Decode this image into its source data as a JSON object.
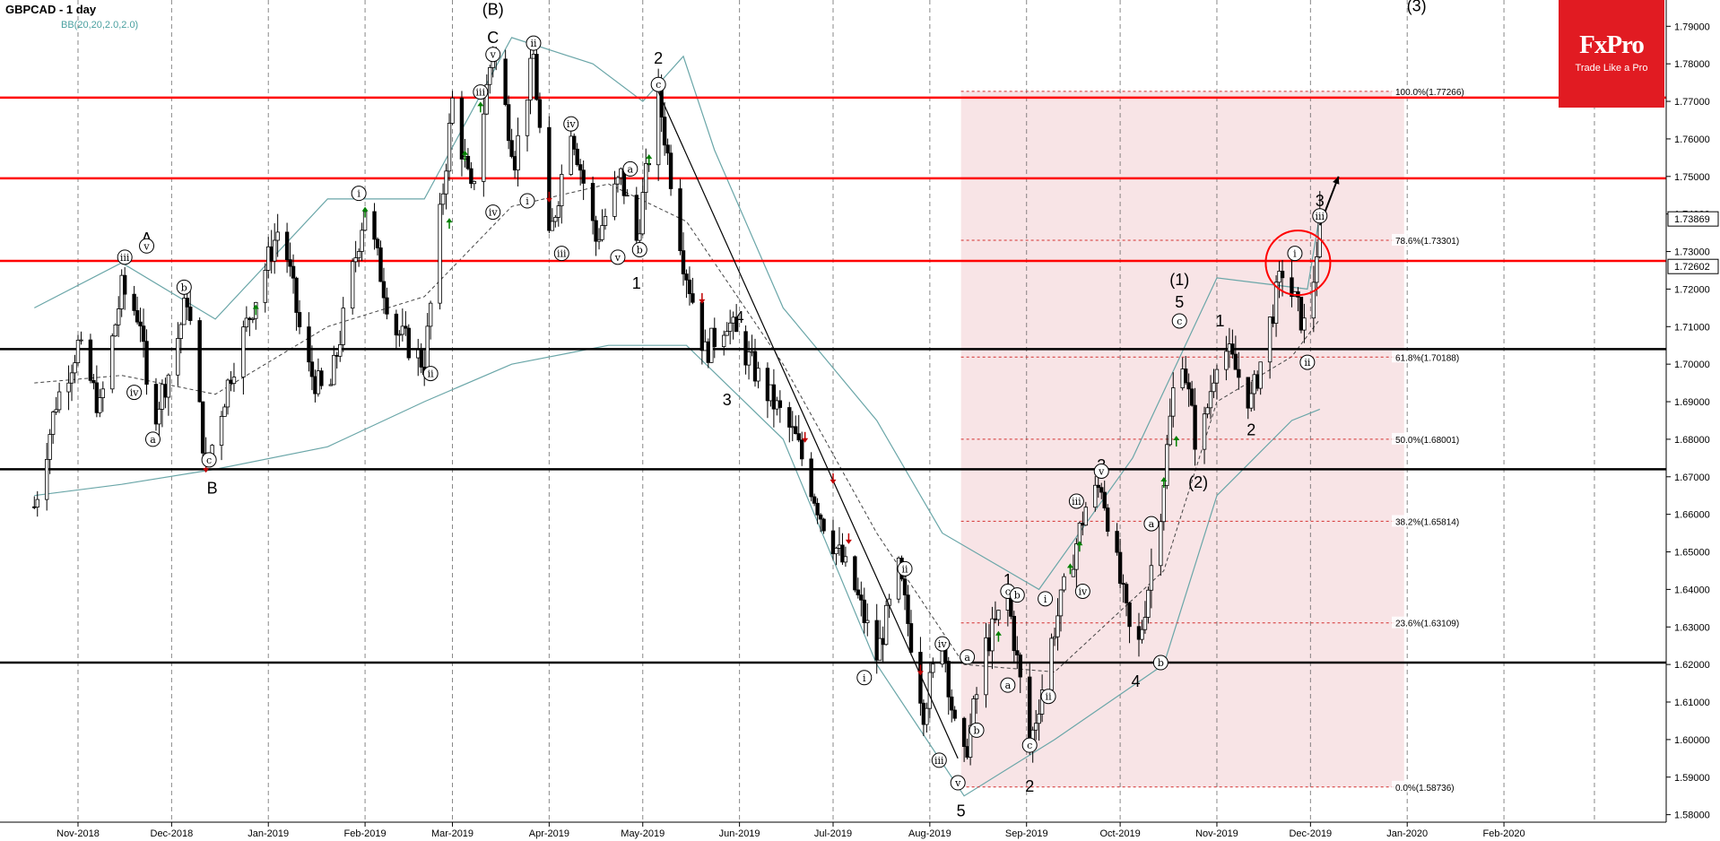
{
  "header": {
    "symbol": "GBPCAD - 1 day",
    "indicator": "BB(20,20,2.0,2.0)"
  },
  "brand": {
    "name": "FxPro",
    "tagline": "Trade Like a Pro",
    "color": "#e11b22"
  },
  "colors": {
    "resistance": "#ff0000",
    "support": "#000000",
    "zone_fill": "#f5d5d8",
    "band": "#6aa6a8",
    "up_arrow": "#008000",
    "down_arrow": "#c00000"
  },
  "chart_data": {
    "type": "candlestick",
    "title": "GBPCAD - 1 day",
    "ylim": [
      1.578,
      1.797
    ],
    "grid": "dashed vertical",
    "x_tick_labels": [
      "Nov-2018",
      "Dec-2018",
      "Jan-2019",
      "Feb-2019",
      "Mar-2019",
      "Apr-2019",
      "May-2019",
      "Jun-2019",
      "Jul-2019",
      "Aug-2019",
      "Sep-2019",
      "Oct-2019",
      "Nov-2019",
      "Dec-2019",
      "Jan-2020",
      "Feb-2020"
    ],
    "y_tick_labels": [
      "1.79000",
      "1.78000",
      "1.77000",
      "1.76000",
      "1.75000",
      "1.74000",
      "1.73000",
      "1.72000",
      "1.71000",
      "1.70000",
      "1.69000",
      "1.68000",
      "1.67000",
      "1.66000",
      "1.65000",
      "1.64000",
      "1.63000",
      "1.62000",
      "1.61000",
      "1.60000",
      "1.59000",
      "1.58000"
    ],
    "price_tags": [
      {
        "label": "1.73869",
        "value": 1.73869
      },
      {
        "label": "1.72602",
        "value": 1.72602
      }
    ],
    "resistance_levels": [
      1.771,
      1.7495,
      1.7275
    ],
    "support_levels": [
      1.704,
      1.672,
      1.6205
    ],
    "fibonacci": [
      {
        "label": "100.0%(1.77266)",
        "value": 1.77266
      },
      {
        "label": "78.6%(1.73301)",
        "value": 1.73301
      },
      {
        "label": "61.8%(1.70188)",
        "value": 1.70188
      },
      {
        "label": "50.0%(1.68001)",
        "value": 1.68001
      },
      {
        "label": "38.2%(1.65814)",
        "value": 1.65814
      },
      {
        "label": "23.6%(1.63109)",
        "value": 1.63109
      },
      {
        "label": "0.0%(1.58736)",
        "value": 1.58736
      }
    ],
    "price_path": [
      {
        "d": "2018-10-18",
        "v": 1.662
      },
      {
        "d": "2018-10-25",
        "v": 1.69
      },
      {
        "d": "2018-11-01",
        "v": 1.705
      },
      {
        "d": "2018-11-08",
        "v": 1.688
      },
      {
        "d": "2018-11-15",
        "v": 1.72
      },
      {
        "d": "2018-11-21",
        "v": 1.712
      },
      {
        "d": "2018-11-24",
        "v": 1.683
      },
      {
        "d": "2018-12-01",
        "v": 1.7
      },
      {
        "d": "2018-12-06",
        "v": 1.718
      },
      {
        "d": "2018-12-12",
        "v": 1.672
      },
      {
        "d": "2018-12-20",
        "v": 1.698
      },
      {
        "d": "2018-12-28",
        "v": 1.718
      },
      {
        "d": "2019-01-05",
        "v": 1.738
      },
      {
        "d": "2019-01-13",
        "v": 1.7
      },
      {
        "d": "2019-01-20",
        "v": 1.69
      },
      {
        "d": "2019-02-01",
        "v": 1.742
      },
      {
        "d": "2019-02-10",
        "v": 1.71
      },
      {
        "d": "2019-02-20",
        "v": 1.7
      },
      {
        "d": "2019-03-01",
        "v": 1.77
      },
      {
        "d": "2019-03-07",
        "v": 1.745
      },
      {
        "d": "2019-03-14",
        "v": 1.785
      },
      {
        "d": "2019-03-21",
        "v": 1.755
      },
      {
        "d": "2019-03-27",
        "v": 1.782
      },
      {
        "d": "2019-04-01",
        "v": 1.732
      },
      {
        "d": "2019-04-08",
        "v": 1.764
      },
      {
        "d": "2019-04-16",
        "v": 1.733
      },
      {
        "d": "2019-04-24",
        "v": 1.75
      },
      {
        "d": "2019-04-29",
        "v": 1.733
      },
      {
        "d": "2019-05-06",
        "v": 1.772
      },
      {
        "d": "2019-05-14",
        "v": 1.728
      },
      {
        "d": "2019-05-21",
        "v": 1.703
      },
      {
        "d": "2019-05-28",
        "v": 1.712
      },
      {
        "d": "2019-06-08",
        "v": 1.695
      },
      {
        "d": "2019-06-19",
        "v": 1.68
      },
      {
        "d": "2019-06-27",
        "v": 1.66
      },
      {
        "d": "2019-07-08",
        "v": 1.64
      },
      {
        "d": "2019-07-15",
        "v": 1.622
      },
      {
        "d": "2019-07-22",
        "v": 1.645
      },
      {
        "d": "2019-07-30",
        "v": 1.608
      },
      {
        "d": "2019-08-05",
        "v": 1.628
      },
      {
        "d": "2019-08-11",
        "v": 1.59
      },
      {
        "d": "2019-08-19",
        "v": 1.625
      },
      {
        "d": "2019-08-26",
        "v": 1.638
      },
      {
        "d": "2019-09-02",
        "v": 1.598
      },
      {
        "d": "2019-09-10",
        "v": 1.63
      },
      {
        "d": "2019-09-20",
        "v": 1.662
      },
      {
        "d": "2019-09-25",
        "v": 1.668
      },
      {
        "d": "2019-10-06",
        "v": 1.62
      },
      {
        "d": "2019-10-14",
        "v": 1.662
      },
      {
        "d": "2019-10-20",
        "v": 1.708
      },
      {
        "d": "2019-10-26",
        "v": 1.675
      },
      {
        "d": "2019-11-02",
        "v": 1.707
      },
      {
        "d": "2019-11-12",
        "v": 1.69
      },
      {
        "d": "2019-11-22",
        "v": 1.725
      },
      {
        "d": "2019-11-30",
        "v": 1.708
      },
      {
        "d": "2019-12-04",
        "v": 1.738
      }
    ],
    "upper_band": [
      {
        "d": "2018-10-18",
        "v": 1.715
      },
      {
        "d": "2018-11-15",
        "v": 1.727
      },
      {
        "d": "2018-12-15",
        "v": 1.712
      },
      {
        "d": "2019-01-20",
        "v": 1.744
      },
      {
        "d": "2019-02-20",
        "v": 1.744
      },
      {
        "d": "2019-03-20",
        "v": 1.787
      },
      {
        "d": "2019-04-15",
        "v": 1.78
      },
      {
        "d": "2019-05-01",
        "v": 1.77
      },
      {
        "d": "2019-05-14",
        "v": 1.782
      },
      {
        "d": "2019-05-24",
        "v": 1.757
      },
      {
        "d": "2019-06-15",
        "v": 1.715
      },
      {
        "d": "2019-07-15",
        "v": 1.685
      },
      {
        "d": "2019-08-05",
        "v": 1.655
      },
      {
        "d": "2019-09-05",
        "v": 1.64
      },
      {
        "d": "2019-10-05",
        "v": 1.675
      },
      {
        "d": "2019-11-01",
        "v": 1.723
      },
      {
        "d": "2019-11-30",
        "v": 1.72
      },
      {
        "d": "2019-12-04",
        "v": 1.74
      }
    ],
    "lower_band": [
      {
        "d": "2018-10-18",
        "v": 1.665
      },
      {
        "d": "2018-11-15",
        "v": 1.668
      },
      {
        "d": "2018-12-15",
        "v": 1.672
      },
      {
        "d": "2019-01-20",
        "v": 1.678
      },
      {
        "d": "2019-02-20",
        "v": 1.69
      },
      {
        "d": "2019-03-20",
        "v": 1.7
      },
      {
        "d": "2019-04-20",
        "v": 1.705
      },
      {
        "d": "2019-05-15",
        "v": 1.705
      },
      {
        "d": "2019-06-15",
        "v": 1.68
      },
      {
        "d": "2019-07-15",
        "v": 1.62
      },
      {
        "d": "2019-08-12",
        "v": 1.585
      },
      {
        "d": "2019-09-10",
        "v": 1.6
      },
      {
        "d": "2019-10-15",
        "v": 1.62
      },
      {
        "d": "2019-11-01",
        "v": 1.665
      },
      {
        "d": "2019-11-25",
        "v": 1.685
      },
      {
        "d": "2019-12-04",
        "v": 1.688
      }
    ],
    "middle_band": [
      {
        "d": "2018-10-18",
        "v": 1.695
      },
      {
        "d": "2018-11-15",
        "v": 1.697
      },
      {
        "d": "2018-12-15",
        "v": 1.692
      },
      {
        "d": "2019-01-20",
        "v": 1.71
      },
      {
        "d": "2019-02-20",
        "v": 1.718
      },
      {
        "d": "2019-03-20",
        "v": 1.742
      },
      {
        "d": "2019-04-20",
        "v": 1.748
      },
      {
        "d": "2019-05-15",
        "v": 1.738
      },
      {
        "d": "2019-06-15",
        "v": 1.7
      },
      {
        "d": "2019-07-15",
        "v": 1.655
      },
      {
        "d": "2019-08-12",
        "v": 1.62
      },
      {
        "d": "2019-09-10",
        "v": 1.618
      },
      {
        "d": "2019-10-15",
        "v": 1.645
      },
      {
        "d": "2019-11-01",
        "v": 1.69
      },
      {
        "d": "2019-11-25",
        "v": 1.702
      },
      {
        "d": "2019-12-04",
        "v": 1.712
      }
    ],
    "trendline": [
      {
        "d": "2019-05-06",
        "v": 1.7725
      },
      {
        "d": "2019-08-10",
        "v": 1.595
      }
    ],
    "projection_arrow": [
      {
        "d": "2019-12-04",
        "v": 1.737
      },
      {
        "d": "2019-12-10",
        "v": 1.75
      }
    ],
    "fib_zone": {
      "x_start": "2019-08-11",
      "x_end": "2019-12-31",
      "y_low": 1.58736,
      "y_high": 1.77266
    },
    "highlight_circle": {
      "d": "2019-11-27",
      "v": 1.727
    },
    "wave_labels": [
      {
        "text": "A",
        "d": "2018-11-23",
        "v": 1.7335,
        "kind": "big"
      },
      {
        "text": "B",
        "d": "2018-12-14",
        "v": 1.667,
        "kind": "big"
      },
      {
        "text": "(B)",
        "d": "2019-03-14",
        "v": 1.7945,
        "kind": "big"
      },
      {
        "text": "C",
        "d": "2019-03-14",
        "v": 1.787,
        "kind": "big"
      },
      {
        "text": "2",
        "d": "2019-05-06",
        "v": 1.7815,
        "kind": "big"
      },
      {
        "text": "1",
        "d": "2019-04-29",
        "v": 1.7215,
        "kind": "big"
      },
      {
        "text": "4",
        "d": "2019-06-01",
        "v": 1.7125,
        "kind": "big"
      },
      {
        "text": "3",
        "d": "2019-05-28",
        "v": 1.6905,
        "kind": "big"
      },
      {
        "text": "5",
        "d": "2019-08-11",
        "v": 1.581,
        "kind": "big"
      },
      {
        "text": "1",
        "d": "2019-08-26",
        "v": 1.6425,
        "kind": "big"
      },
      {
        "text": "2",
        "d": "2019-09-02",
        "v": 1.5875,
        "kind": "big"
      },
      {
        "text": "3",
        "d": "2019-09-25",
        "v": 1.673,
        "kind": "big"
      },
      {
        "text": "4",
        "d": "2019-10-06",
        "v": 1.6155,
        "kind": "big"
      },
      {
        "text": "(1)",
        "d": "2019-10-20",
        "v": 1.7225,
        "kind": "big"
      },
      {
        "text": "5",
        "d": "2019-10-20",
        "v": 1.7165,
        "kind": "big"
      },
      {
        "text": "(2)",
        "d": "2019-10-26",
        "v": 1.6685,
        "kind": "big"
      },
      {
        "text": "1",
        "d": "2019-11-02",
        "v": 1.7115,
        "kind": "big"
      },
      {
        "text": "2",
        "d": "2019-11-12",
        "v": 1.6825,
        "kind": "big"
      },
      {
        "text": "3",
        "d": "2019-12-04",
        "v": 1.7435,
        "kind": "big"
      },
      {
        "text": "(3)",
        "d": "2020-01-04",
        "v": 1.7955,
        "kind": "big"
      },
      {
        "text": "iii",
        "d": "2018-11-16",
        "v": 1.7285,
        "kind": "circle"
      },
      {
        "text": "v",
        "d": "2018-11-23",
        "v": 1.7315,
        "kind": "circle"
      },
      {
        "text": "iv",
        "d": "2018-11-19",
        "v": 1.6925,
        "kind": "circle"
      },
      {
        "text": "a",
        "d": "2018-11-25",
        "v": 1.68,
        "kind": "circle"
      },
      {
        "text": "b",
        "d": "2018-12-05",
        "v": 1.7205,
        "kind": "circle"
      },
      {
        "text": "c",
        "d": "2018-12-13",
        "v": 1.6745,
        "kind": "circle"
      },
      {
        "text": "i",
        "d": "2019-01-30",
        "v": 1.7455,
        "kind": "circle"
      },
      {
        "text": "ii",
        "d": "2019-02-22",
        "v": 1.6975,
        "kind": "circle"
      },
      {
        "text": "iii",
        "d": "2019-03-10",
        "v": 1.7725,
        "kind": "circle"
      },
      {
        "text": "v",
        "d": "2019-03-14",
        "v": 1.7825,
        "kind": "circle"
      },
      {
        "text": "ii",
        "d": "2019-03-27",
        "v": 1.7855,
        "kind": "circle"
      },
      {
        "text": "iv",
        "d": "2019-03-14",
        "v": 1.7405,
        "kind": "circle"
      },
      {
        "text": "i",
        "d": "2019-03-25",
        "v": 1.7435,
        "kind": "circle"
      },
      {
        "text": "iii",
        "d": "2019-04-05",
        "v": 1.7295,
        "kind": "circle"
      },
      {
        "text": "iv",
        "d": "2019-04-08",
        "v": 1.764,
        "kind": "circle"
      },
      {
        "text": "a",
        "d": "2019-04-27",
        "v": 1.752,
        "kind": "circle"
      },
      {
        "text": "v",
        "d": "2019-04-23",
        "v": 1.7285,
        "kind": "circle"
      },
      {
        "text": "b",
        "d": "2019-04-30",
        "v": 1.7305,
        "kind": "circle"
      },
      {
        "text": "c",
        "d": "2019-05-06",
        "v": 1.7745,
        "kind": "circle"
      },
      {
        "text": "i",
        "d": "2019-07-11",
        "v": 1.6165,
        "kind": "circle"
      },
      {
        "text": "ii",
        "d": "2019-07-24",
        "v": 1.6455,
        "kind": "circle"
      },
      {
        "text": "iii",
        "d": "2019-08-04",
        "v": 1.5945,
        "kind": "circle"
      },
      {
        "text": "iv",
        "d": "2019-08-05",
        "v": 1.6255,
        "kind": "circle"
      },
      {
        "text": "v",
        "d": "2019-08-10",
        "v": 1.5885,
        "kind": "circle"
      },
      {
        "text": "a",
        "d": "2019-08-13",
        "v": 1.622,
        "kind": "circle"
      },
      {
        "text": "b",
        "d": "2019-08-16",
        "v": 1.6025,
        "kind": "circle"
      },
      {
        "text": "c",
        "d": "2019-08-26",
        "v": 1.6395,
        "kind": "circle"
      },
      {
        "text": "a",
        "d": "2019-08-26",
        "v": 1.6145,
        "kind": "circle"
      },
      {
        "text": "b",
        "d": "2019-08-29",
        "v": 1.6385,
        "kind": "circle"
      },
      {
        "text": "c",
        "d": "2019-09-02",
        "v": 1.5985,
        "kind": "circle"
      },
      {
        "text": "i",
        "d": "2019-09-07",
        "v": 1.6375,
        "kind": "circle"
      },
      {
        "text": "ii",
        "d": "2019-09-08",
        "v": 1.6115,
        "kind": "circle"
      },
      {
        "text": "iii",
        "d": "2019-09-17",
        "v": 1.6635,
        "kind": "circle"
      },
      {
        "text": "iv",
        "d": "2019-09-19",
        "v": 1.6395,
        "kind": "circle"
      },
      {
        "text": "v",
        "d": "2019-09-25",
        "v": 1.6715,
        "kind": "circle"
      },
      {
        "text": "a",
        "d": "2019-10-11",
        "v": 1.6575,
        "kind": "circle"
      },
      {
        "text": "b",
        "d": "2019-10-14",
        "v": 1.6205,
        "kind": "circle"
      },
      {
        "text": "c",
        "d": "2019-10-20",
        "v": 1.7115,
        "kind": "circle"
      },
      {
        "text": "i",
        "d": "2019-11-26",
        "v": 1.7295,
        "kind": "circle"
      },
      {
        "text": "ii",
        "d": "2019-11-30",
        "v": 1.7005,
        "kind": "circle"
      },
      {
        "text": "iii",
        "d": "2019-12-04",
        "v": 1.7395,
        "kind": "circle"
      }
    ],
    "signal_arrows": [
      {
        "d": "2018-12-12",
        "v": 1.6725,
        "dir": "down"
      },
      {
        "d": "2018-12-28",
        "v": 1.7145,
        "dir": "up"
      },
      {
        "d": "2019-02-01",
        "v": 1.7405,
        "dir": "up"
      },
      {
        "d": "2019-02-28",
        "v": 1.7375,
        "dir": "up"
      },
      {
        "d": "2019-03-05",
        "v": 1.7555,
        "dir": "up"
      },
      {
        "d": "2019-03-10",
        "v": 1.7685,
        "dir": "up"
      },
      {
        "d": "2019-04-01",
        "v": 1.7445,
        "dir": "down"
      },
      {
        "d": "2019-05-03",
        "v": 1.7545,
        "dir": "up"
      },
      {
        "d": "2019-05-20",
        "v": 1.7175,
        "dir": "down"
      },
      {
        "d": "2019-06-22",
        "v": 1.6805,
        "dir": "down"
      },
      {
        "d": "2019-07-01",
        "v": 1.6695,
        "dir": "down"
      },
      {
        "d": "2019-07-06",
        "v": 1.6535,
        "dir": "down"
      },
      {
        "d": "2019-07-29",
        "v": 1.6185,
        "dir": "down"
      },
      {
        "d": "2019-08-23",
        "v": 1.6275,
        "dir": "up"
      },
      {
        "d": "2019-09-15",
        "v": 1.6455,
        "dir": "up"
      },
      {
        "d": "2019-09-18",
        "v": 1.6515,
        "dir": "up"
      },
      {
        "d": "2019-10-15",
        "v": 1.6685,
        "dir": "up"
      },
      {
        "d": "2019-10-19",
        "v": 1.6795,
        "dir": "up"
      }
    ]
  }
}
